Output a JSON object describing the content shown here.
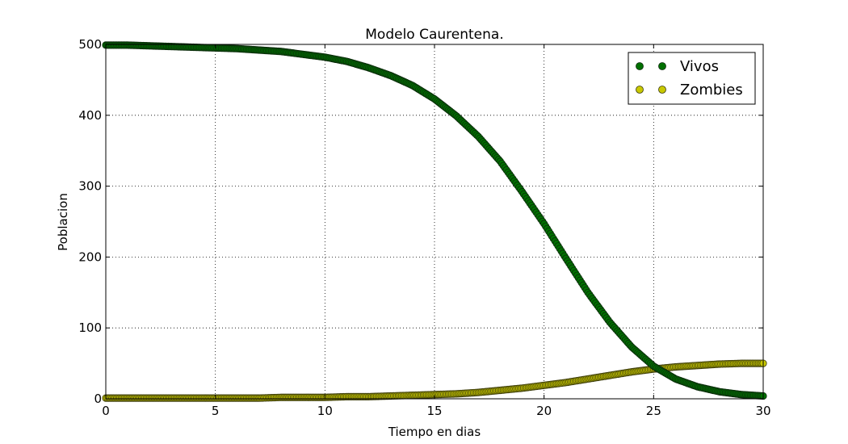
{
  "chart_data": {
    "type": "scatter",
    "title": "Modelo Caurentena.",
    "xlabel": "Tiempo en dias",
    "ylabel": "Poblacion",
    "xlim": [
      0,
      30
    ],
    "ylim": [
      0,
      500
    ],
    "xticks": [
      0,
      5,
      10,
      15,
      20,
      25,
      30
    ],
    "yticks": [
      0,
      100,
      200,
      300,
      400,
      500
    ],
    "grid": true,
    "legend": "top-right",
    "series": [
      {
        "name": "Vivos",
        "color": "#007000",
        "edge_color": "#0b2a0b",
        "x": [
          0,
          1,
          2,
          3,
          4,
          5,
          6,
          7,
          8,
          9,
          10,
          11,
          12,
          13,
          14,
          15,
          16,
          17,
          18,
          19,
          20,
          21,
          22,
          23,
          24,
          25,
          26,
          27,
          28,
          29,
          30
        ],
        "y": [
          499,
          499,
          498,
          497,
          496,
          495,
          494,
          492,
          490,
          486,
          482,
          476,
          467,
          456,
          442,
          423,
          399,
          370,
          335,
          292,
          247,
          198,
          150,
          108,
          73,
          46,
          28,
          17,
          10,
          6,
          4
        ]
      },
      {
        "name": "Zombies",
        "color": "#c8c800",
        "edge_color": "#3a3a0a",
        "x": [
          0,
          1,
          2,
          3,
          4,
          5,
          6,
          7,
          8,
          9,
          10,
          11,
          12,
          13,
          14,
          15,
          16,
          17,
          18,
          19,
          20,
          21,
          22,
          23,
          24,
          25,
          26,
          27,
          28,
          29,
          30
        ],
        "y": [
          1,
          1,
          1,
          1,
          1,
          1,
          1,
          1,
          2,
          2,
          2,
          3,
          3,
          4,
          5,
          6,
          7,
          9,
          12,
          15,
          19,
          23,
          28,
          33,
          38,
          42,
          45,
          47,
          49,
          50,
          50
        ]
      }
    ]
  }
}
